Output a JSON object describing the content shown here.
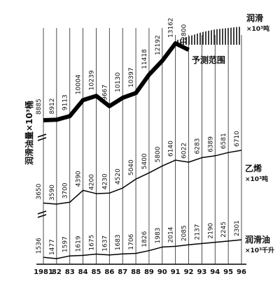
{
  "chart_data": {
    "type": "line",
    "y_label": "润滑油量×10³桶",
    "forecast_label": "予测范围",
    "categories": [
      "1981",
      "82",
      "83",
      "84",
      "85",
      "86",
      "87",
      "88",
      "89",
      "90",
      "91",
      "92",
      "93",
      "94",
      "95",
      "96"
    ],
    "series": [
      {
        "name": "润滑",
        "unit": "×10³吨",
        "color": "#000000",
        "values": [
          8885,
          8912,
          9113,
          10004,
          10239,
          9667,
          10130,
          10397,
          11418,
          12192,
          13162,
          12800,
          null,
          null,
          null,
          null
        ]
      },
      {
        "name": "乙烯",
        "unit": "×10³吨",
        "color": "#000000",
        "values": [
          3650,
          3590,
          3700,
          4390,
          4200,
          4230,
          4520,
          5040,
          5400,
          5800,
          6140,
          6022,
          6283,
          6389,
          6581,
          6710
        ]
      },
      {
        "name": "润滑油",
        "unit": "×10³千升",
        "color": "#000000",
        "values": [
          1536,
          1477,
          1597,
          1619,
          1675,
          1637,
          1683,
          1706,
          1826,
          1983,
          2014,
          2085,
          2137,
          2190,
          2245,
          2301
        ]
      }
    ]
  }
}
